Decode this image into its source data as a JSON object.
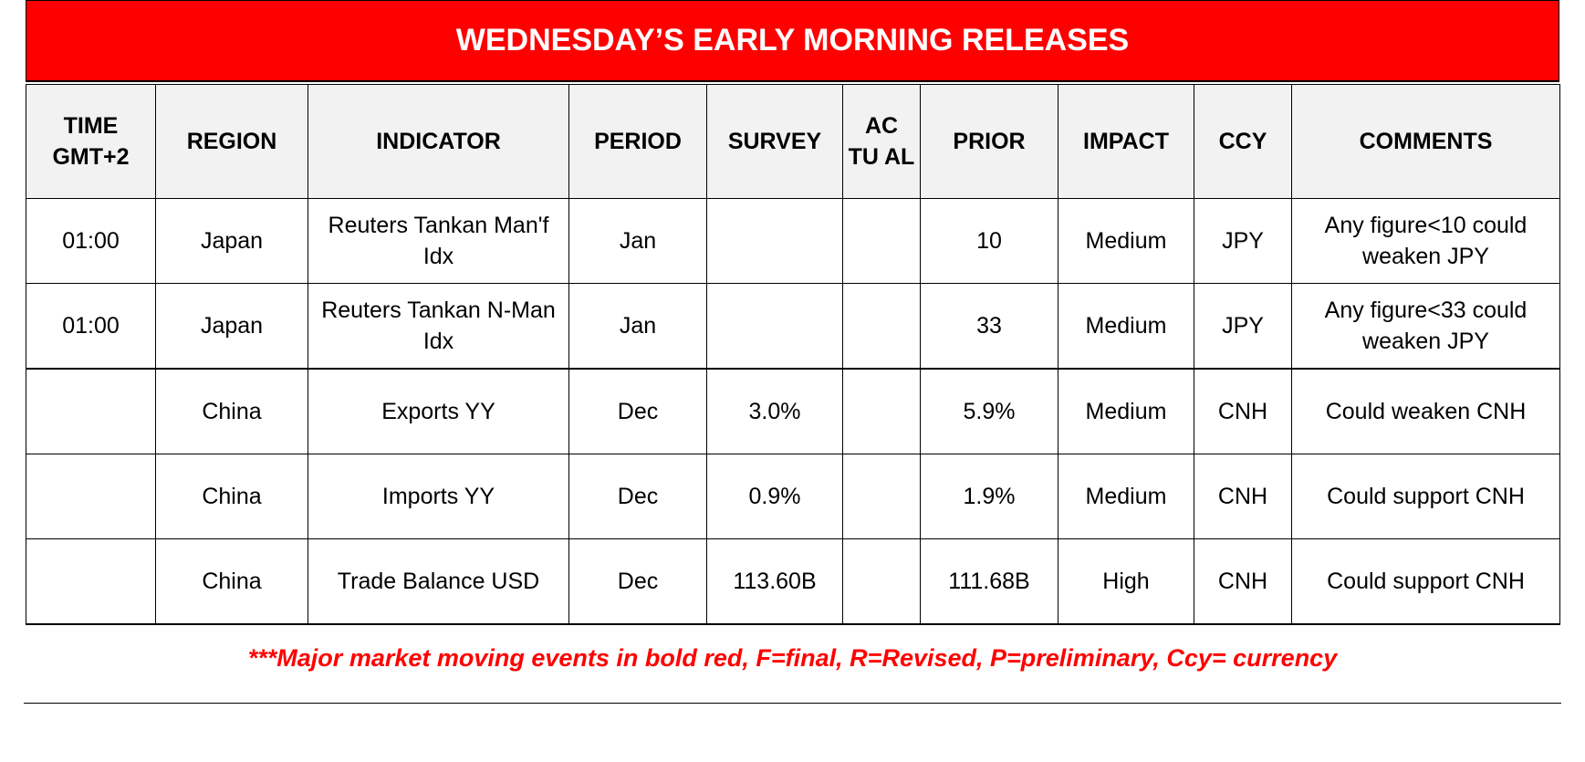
{
  "title": "WEDNESDAY’S EARLY MORNING RELEASES",
  "headers": [
    "TIME GMT+2",
    "REGION",
    "INDICATOR",
    "PERIOD",
    "SURVEY",
    "AC TU AL",
    "PRIOR",
    "IMPACT",
    "CCY",
    "COMMENTS"
  ],
  "rows": [
    [
      "01:00",
      "Japan",
      "Reuters Tankan Man'f Idx",
      "Jan",
      "",
      "",
      "10",
      "Medium",
      "JPY",
      "Any figure<10 could weaken JPY"
    ],
    [
      "01:00",
      "Japan",
      "Reuters Tankan N-Man Idx",
      "Jan",
      "",
      "",
      "33",
      "Medium",
      "JPY",
      "Any figure<33 could weaken JPY"
    ],
    [
      "",
      "China",
      "Exports YY",
      "Dec",
      "3.0%",
      "",
      "5.9%",
      "Medium",
      "CNH",
      "Could weaken CNH"
    ],
    [
      "",
      "China",
      "Imports YY",
      "Dec",
      "0.9%",
      "",
      "1.9%",
      "Medium",
      "CNH",
      "Could support CNH"
    ],
    [
      "",
      "China",
      "Trade Balance USD",
      "Dec",
      "113.60B",
      "",
      "111.68B",
      "High",
      "CNH",
      "Could support CNH"
    ]
  ],
  "footnote": "***Major market moving events in bold red, F=final, R=Revised, P=preliminary, Ccy= currency",
  "colors": {
    "banner": "#ff0000",
    "header_bg": "#f2f2f2",
    "footnote": "#ff0000"
  }
}
